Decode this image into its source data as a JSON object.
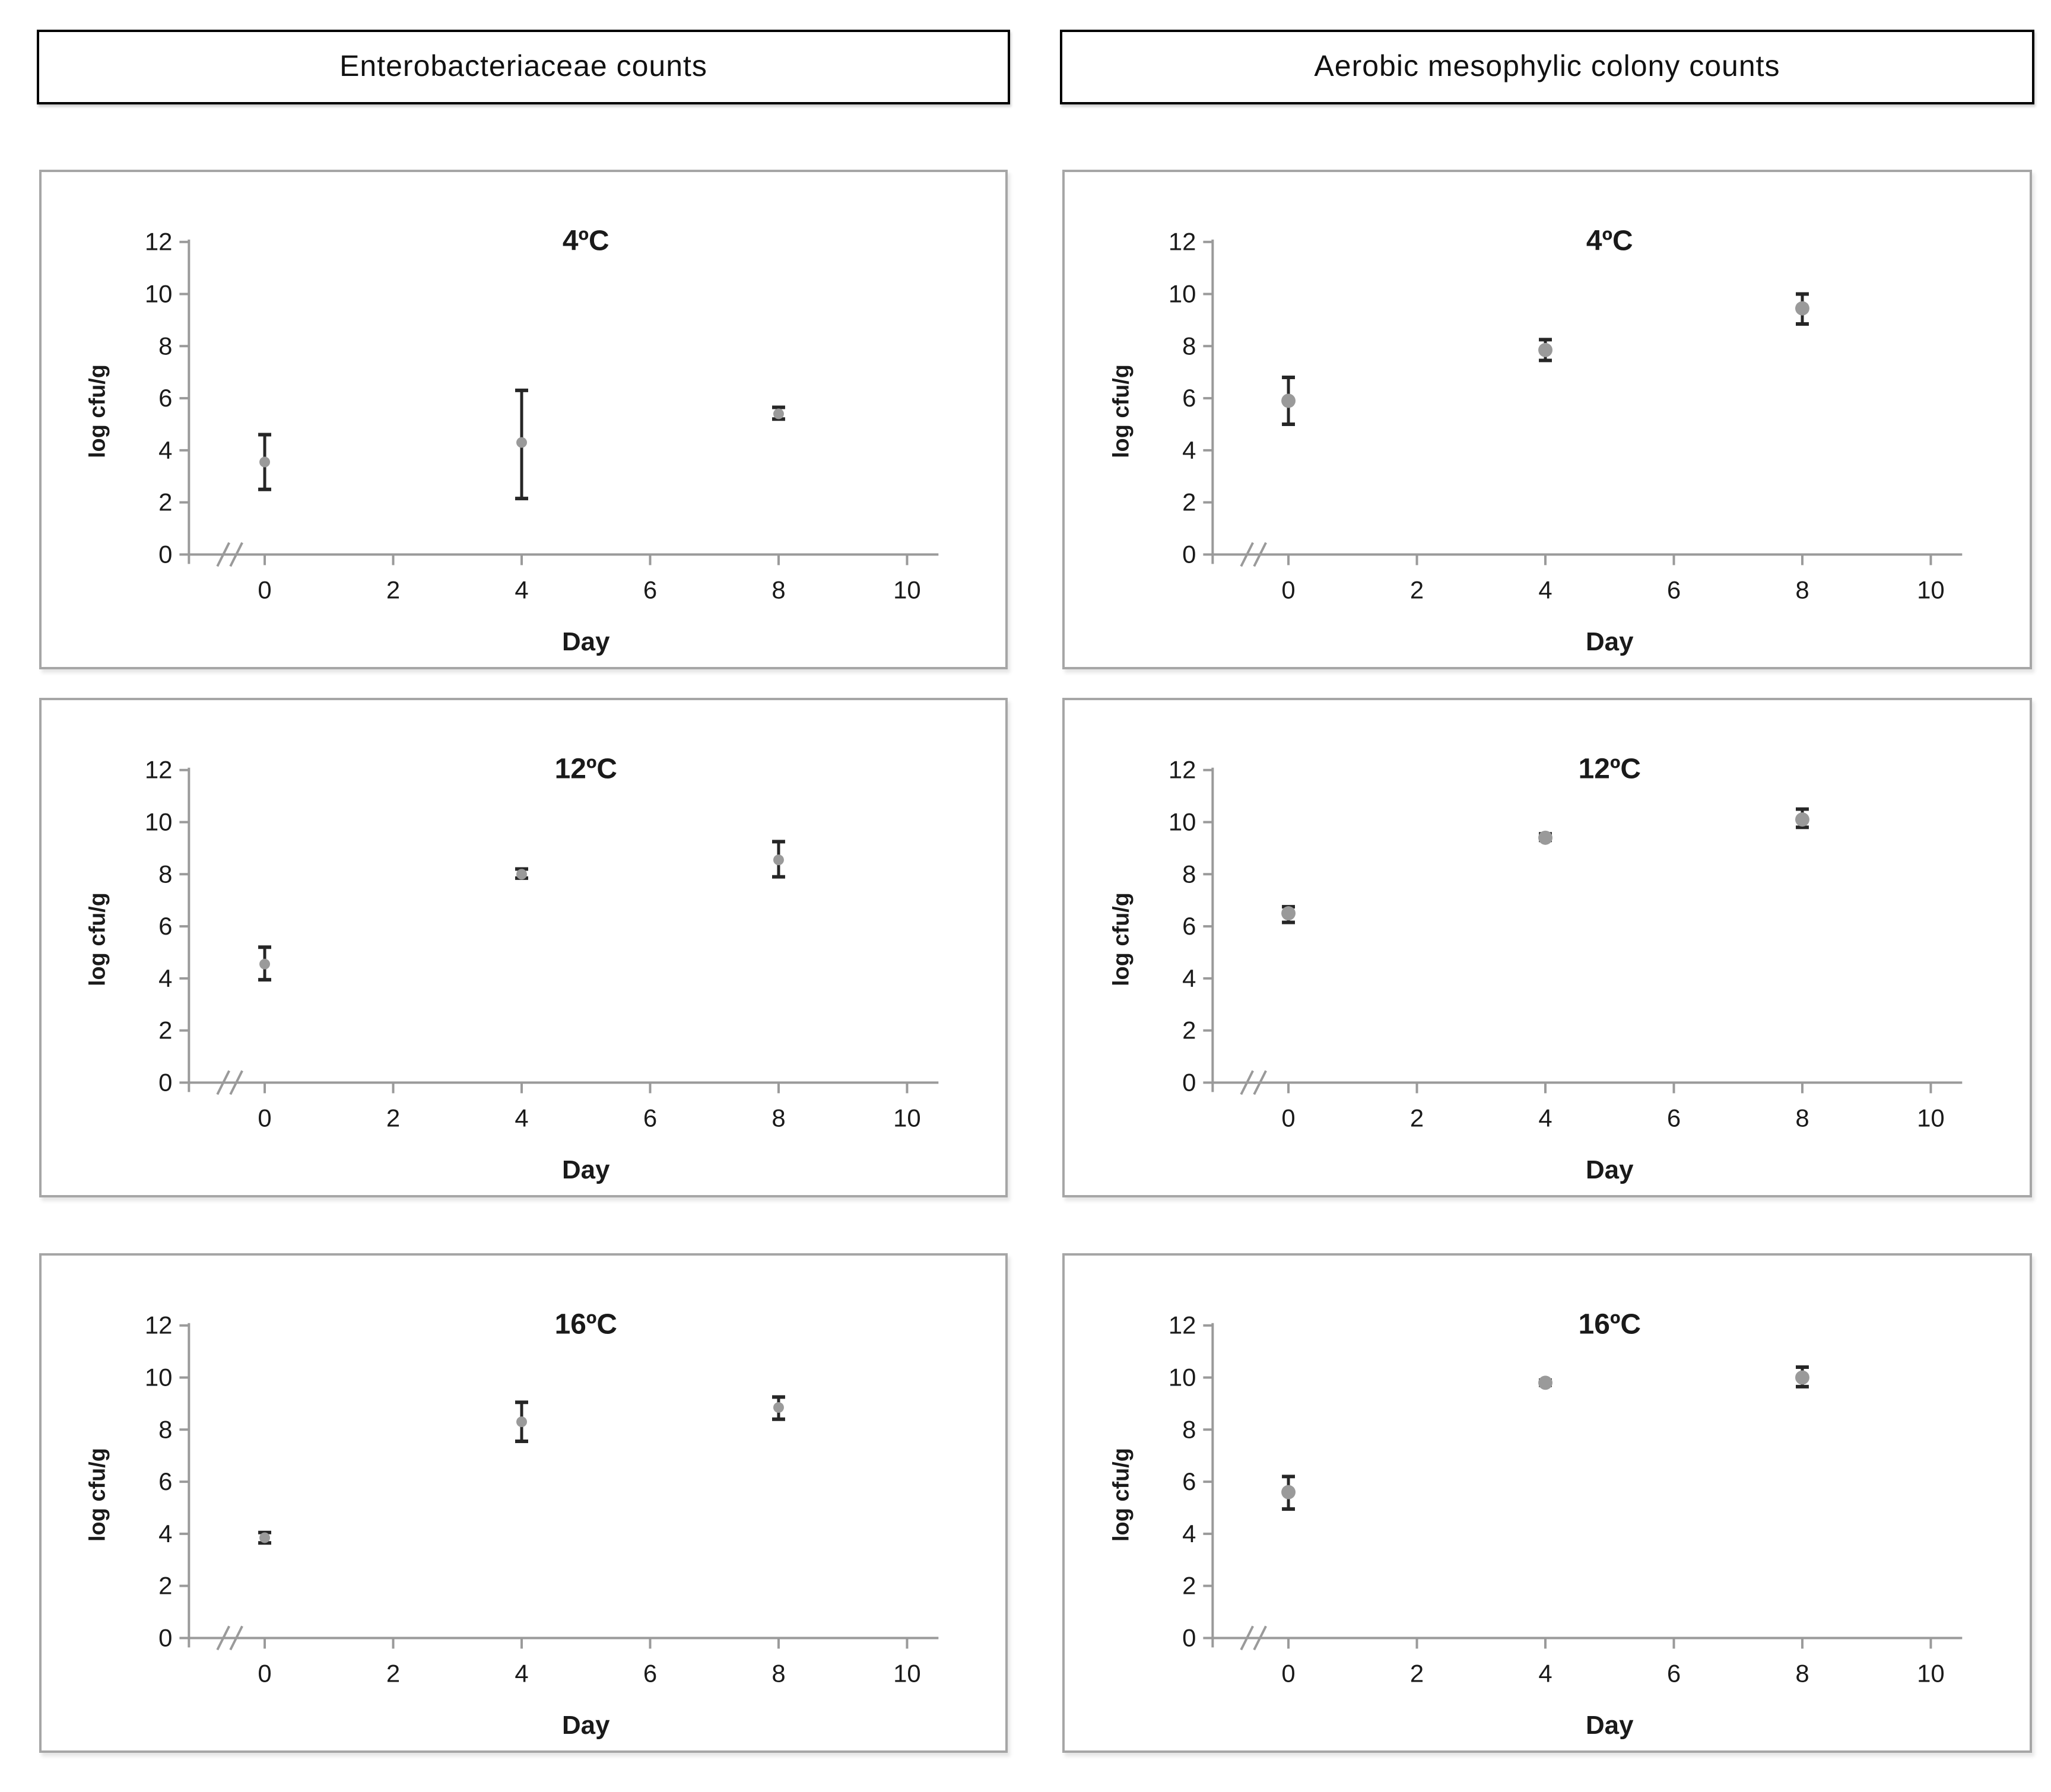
{
  "figure": {
    "headers": [
      "Enterobacteriaceae counts",
      "Aerobic mesophylic colony counts"
    ]
  },
  "colors": {
    "axis_line": "#9a9a9a",
    "error_bar": "#262626",
    "marker_fill": "#9a9a9a",
    "panel_border": "#a6a6a6",
    "header_border": "#000000",
    "text": "#1a1a1a",
    "background": "#ffffff"
  },
  "chart_data": [
    {
      "id": "enterobacteriaceae-4c",
      "type": "scatter",
      "group": "Enterobacteriaceae counts",
      "title": "4ºC",
      "xlabel": "Day",
      "ylabel": "log cfu/g",
      "xlim": [
        0,
        10
      ],
      "ylim": [
        0,
        12
      ],
      "x_ticks": [
        0,
        2,
        4,
        6,
        8,
        10
      ],
      "y_ticks": [
        0,
        2,
        4,
        6,
        8,
        10,
        12
      ],
      "x_axis_break": true,
      "grid": false,
      "legend": "none",
      "marker_radius": 4.5,
      "points": [
        {
          "x": 0,
          "y": 3.55,
          "err_low": 2.5,
          "err_high": 4.6
        },
        {
          "x": 4,
          "y": 4.3,
          "err_low": 2.15,
          "err_high": 6.3
        },
        {
          "x": 8,
          "y": 5.4,
          "err_low": 5.2,
          "err_high": 5.65
        }
      ]
    },
    {
      "id": "aerobic-4c",
      "type": "scatter",
      "group": "Aerobic mesophylic colony counts",
      "title": "4ºC",
      "xlabel": "Day",
      "ylabel": "log cfu/g",
      "xlim": [
        0,
        10
      ],
      "ylim": [
        0,
        12
      ],
      "x_ticks": [
        0,
        2,
        4,
        6,
        8,
        10
      ],
      "y_ticks": [
        0,
        2,
        4,
        6,
        8,
        10,
        12
      ],
      "x_axis_break": true,
      "grid": false,
      "legend": "none",
      "marker_radius": 6,
      "points": [
        {
          "x": 0,
          "y": 5.9,
          "err_low": 5.0,
          "err_high": 6.8
        },
        {
          "x": 4,
          "y": 7.85,
          "err_low": 7.45,
          "err_high": 8.25
        },
        {
          "x": 8,
          "y": 9.45,
          "err_low": 8.85,
          "err_high": 10.0
        }
      ]
    },
    {
      "id": "enterobacteriaceae-12c",
      "type": "scatter",
      "group": "Enterobacteriaceae counts",
      "title": "12ºC",
      "xlabel": "Day",
      "ylabel": "log cfu/g",
      "xlim": [
        0,
        10
      ],
      "ylim": [
        0,
        12
      ],
      "x_ticks": [
        0,
        2,
        4,
        6,
        8,
        10
      ],
      "y_ticks": [
        0,
        2,
        4,
        6,
        8,
        10,
        12
      ],
      "x_axis_break": true,
      "grid": false,
      "legend": "none",
      "marker_radius": 4.5,
      "points": [
        {
          "x": 0,
          "y": 4.55,
          "err_low": 3.95,
          "err_high": 5.2
        },
        {
          "x": 4,
          "y": 8.0,
          "err_low": 7.85,
          "err_high": 8.2
        },
        {
          "x": 8,
          "y": 8.55,
          "err_low": 7.9,
          "err_high": 9.25
        }
      ]
    },
    {
      "id": "aerobic-12c",
      "type": "scatter",
      "group": "Aerobic mesophylic colony counts",
      "title": "12ºC",
      "xlabel": "Day",
      "ylabel": "log cfu/g",
      "xlim": [
        0,
        10
      ],
      "ylim": [
        0,
        12
      ],
      "x_ticks": [
        0,
        2,
        4,
        6,
        8,
        10
      ],
      "y_ticks": [
        0,
        2,
        4,
        6,
        8,
        10,
        12
      ],
      "x_axis_break": true,
      "grid": false,
      "legend": "none",
      "marker_radius": 6,
      "points": [
        {
          "x": 0,
          "y": 6.5,
          "err_low": 6.15,
          "err_high": 6.75
        },
        {
          "x": 4,
          "y": 9.4,
          "err_low": 9.3,
          "err_high": 9.55
        },
        {
          "x": 8,
          "y": 10.1,
          "err_low": 9.8,
          "err_high": 10.5
        }
      ]
    },
    {
      "id": "enterobacteriaceae-16c",
      "type": "scatter",
      "group": "Enterobacteriaceae counts",
      "title": "16ºC",
      "xlabel": "Day",
      "ylabel": "log cfu/g",
      "xlim": [
        0,
        10
      ],
      "ylim": [
        0,
        12
      ],
      "x_ticks": [
        0,
        2,
        4,
        6,
        8,
        10
      ],
      "y_ticks": [
        0,
        2,
        4,
        6,
        8,
        10,
        12
      ],
      "x_axis_break": true,
      "grid": false,
      "legend": "none",
      "marker_radius": 4.5,
      "points": [
        {
          "x": 0,
          "y": 3.85,
          "err_low": 3.65,
          "err_high": 4.05
        },
        {
          "x": 4,
          "y": 8.3,
          "err_low": 7.55,
          "err_high": 9.05
        },
        {
          "x": 8,
          "y": 8.85,
          "err_low": 8.4,
          "err_high": 9.25
        }
      ]
    },
    {
      "id": "aerobic-16c",
      "type": "scatter",
      "group": "Aerobic mesophylic colony counts",
      "title": "16ºC",
      "xlabel": "Day",
      "ylabel": "log cfu/g",
      "xlim": [
        0,
        10
      ],
      "ylim": [
        0,
        12
      ],
      "x_ticks": [
        0,
        2,
        4,
        6,
        8,
        10
      ],
      "y_ticks": [
        0,
        2,
        4,
        6,
        8,
        10,
        12
      ],
      "x_axis_break": true,
      "grid": false,
      "legend": "none",
      "marker_radius": 6,
      "points": [
        {
          "x": 0,
          "y": 5.6,
          "err_low": 4.95,
          "err_high": 6.2
        },
        {
          "x": 4,
          "y": 9.8,
          "err_low": 9.7,
          "err_high": 9.9
        },
        {
          "x": 8,
          "y": 10.0,
          "err_low": 9.65,
          "err_high": 10.4
        }
      ]
    }
  ]
}
